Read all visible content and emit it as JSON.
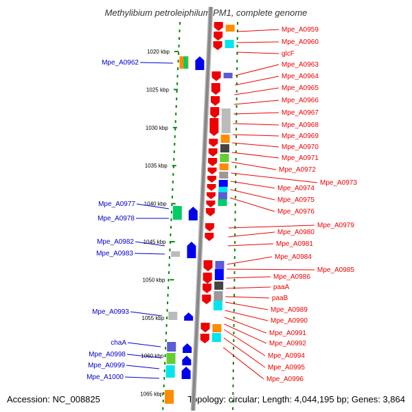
{
  "title": "Methylibium petroleiphilum PM1, complete genome",
  "footer": {
    "accession": "Accession: NC_008825",
    "topology": "Topology: circular; Length: 4,044,195 bp; Genes: 3,864"
  },
  "colors": {
    "background": "#ffffff",
    "backbone": "#888888",
    "forward_gene": "#ee0000",
    "reverse_gene": "#0000ee",
    "label_forward": "#ee0000",
    "label_reverse": "#0000cc",
    "tick_dots": "#008800",
    "cog_palette": [
      "#00e5ee",
      "#ff8c00",
      "#999999",
      "#bbbbbb",
      "#5c5cd6",
      "#00cc66",
      "#66cc33",
      "#444444",
      "#0000ff"
    ]
  },
  "scale": {
    "unit": "kbp",
    "ticks": [
      {
        "kbp": 1020,
        "label": "1020 kbp"
      },
      {
        "kbp": 1025,
        "label": "1025 kbp"
      },
      {
        "kbp": 1030,
        "label": "1030 kbp"
      },
      {
        "kbp": 1035,
        "label": "1035 kbp"
      },
      {
        "kbp": 1040,
        "label": "1040 kbp"
      },
      {
        "kbp": 1045,
        "label": "1045 kbp"
      },
      {
        "kbp": 1050,
        "label": "1050 kbp"
      },
      {
        "kbp": 1055,
        "label": "1055 kbp"
      },
      {
        "kbp": 1060,
        "label": "1060 kbp"
      },
      {
        "kbp": 1065,
        "label": "1065 kbp"
      }
    ]
  },
  "forward_labels": [
    "Mpe_A0959",
    "Mpe_A0960",
    "glcF",
    "Mpe_A0963",
    "Mpe_A0964",
    "Mpe_A0965",
    "Mpe_A0966",
    "Mpe_A0967",
    "Mpe_A0968",
    "Mpe_A0969",
    "Mpe_A0970",
    "Mpe_A0971",
    "Mpe_A0972",
    "Mpe_A0973",
    "Mpe_A0974",
    "Mpe_A0975",
    "Mpe_A0976",
    "Mpe_A0979",
    "Mpe_A0980",
    "Mpe_A0981",
    "Mpe_A0984",
    "Mpe_A0985",
    "Mpe_A0986",
    "paaA",
    "paaB",
    "Mpe_A0989",
    "Mpe_A0990",
    "Mpe_A0991",
    "Mpe_A0992",
    "Mpe_A0994",
    "Mpe_A0995",
    "Mpe_A0996"
  ],
  "reverse_labels": [
    "Mpe_A0962",
    "Mpe_A0977",
    "Mpe_A0978",
    "Mpe_A0982",
    "Mpe_A0983",
    "Mpe_A0993",
    "chaA",
    "Mpe_A0998",
    "Mpe_A0999",
    "Mpe_A1000"
  ]
}
